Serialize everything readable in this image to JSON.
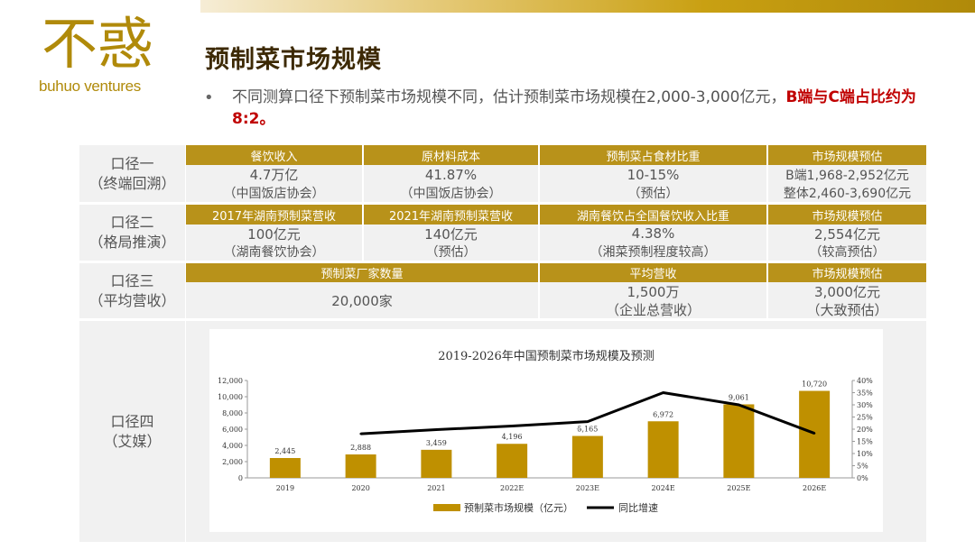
{
  "logo": {
    "text": "buhuo ventures",
    "mark": "不惑"
  },
  "page": {
    "title": "预制菜市场规模",
    "bullet_normal": "不同测算口径下预制菜市场规模不同，估计预制菜市场规模在2,000-3,000亿元，",
    "bullet_bold": "B端与C端占比约为8:2。"
  },
  "rows": [
    {
      "label1": "口径一",
      "label2": "（终端回溯）",
      "headers": [
        "餐饮收入",
        "原材料成本",
        "预制菜占食材比重",
        "市场规模预估"
      ],
      "line1": [
        "4.7万亿",
        "41.87%",
        "10-15%",
        "B端1,968-2,952亿元"
      ],
      "line2": [
        "（中国饭店协会）",
        "（中国饭店协会）",
        "（预估）",
        "整体2,460-3,690亿元"
      ]
    },
    {
      "label1": "口径二",
      "label2": "（格局推演）",
      "headers": [
        "2017年湖南预制菜营收",
        "2021年湖南预制菜营收",
        "湖南餐饮占全国餐饮收入比重",
        "市场规模预估"
      ],
      "line1": [
        "100亿元",
        "140亿元",
        "4.38%",
        "2,554亿元"
      ],
      "line2": [
        "（湖南餐饮协会）",
        "（预估）",
        "（湘菜预制程度较高）",
        "（较高预估）"
      ]
    },
    {
      "label1": "口径三",
      "label2": "（平均营收）",
      "headers": [
        "预制菜厂家数量",
        "平均营收",
        "市场规模预估"
      ],
      "merged_value": "20,000家",
      "line1": [
        "1,500万",
        "3,000亿元"
      ],
      "line2": [
        "（企业总营收）",
        "（大致预估）"
      ]
    },
    {
      "label1": "口径四",
      "label2": "（艾媒）"
    }
  ],
  "chart_data": {
    "type": "bar",
    "title": "2019-2026年中国预制菜市场规模及预测",
    "categories": [
      "2019",
      "2020",
      "2021",
      "2022E",
      "2023E",
      "2024E",
      "2025E",
      "2026E"
    ],
    "series": [
      {
        "name": "预制菜市场规模（亿元）",
        "type": "bar",
        "axis": "left",
        "color": "#bf9000",
        "values": [
          2445,
          2888,
          3459,
          4196,
          5165,
          6972,
          9061,
          10720
        ],
        "labels": [
          "2,445",
          "2,888",
          "3,459",
          "4,196",
          "5,165",
          "6,972",
          "9,061",
          "10,720"
        ]
      },
      {
        "name": "同比增速",
        "type": "line",
        "axis": "right",
        "color": "#000000",
        "values": [
          null,
          18.1,
          19.8,
          21.3,
          23.1,
          35.0,
          30.0,
          18.3
        ]
      }
    ],
    "ylim": [
      0,
      12000
    ],
    "yticks": [
      "0",
      "2,000",
      "4,000",
      "6,000",
      "8,000",
      "10,000",
      "12,000"
    ],
    "y2lim": [
      0,
      40
    ],
    "y2ticks": [
      "0%",
      "5%",
      "10%",
      "15%",
      "20%",
      "25%",
      "30%",
      "35%",
      "40%"
    ],
    "legend": "bottom",
    "grid": false
  }
}
